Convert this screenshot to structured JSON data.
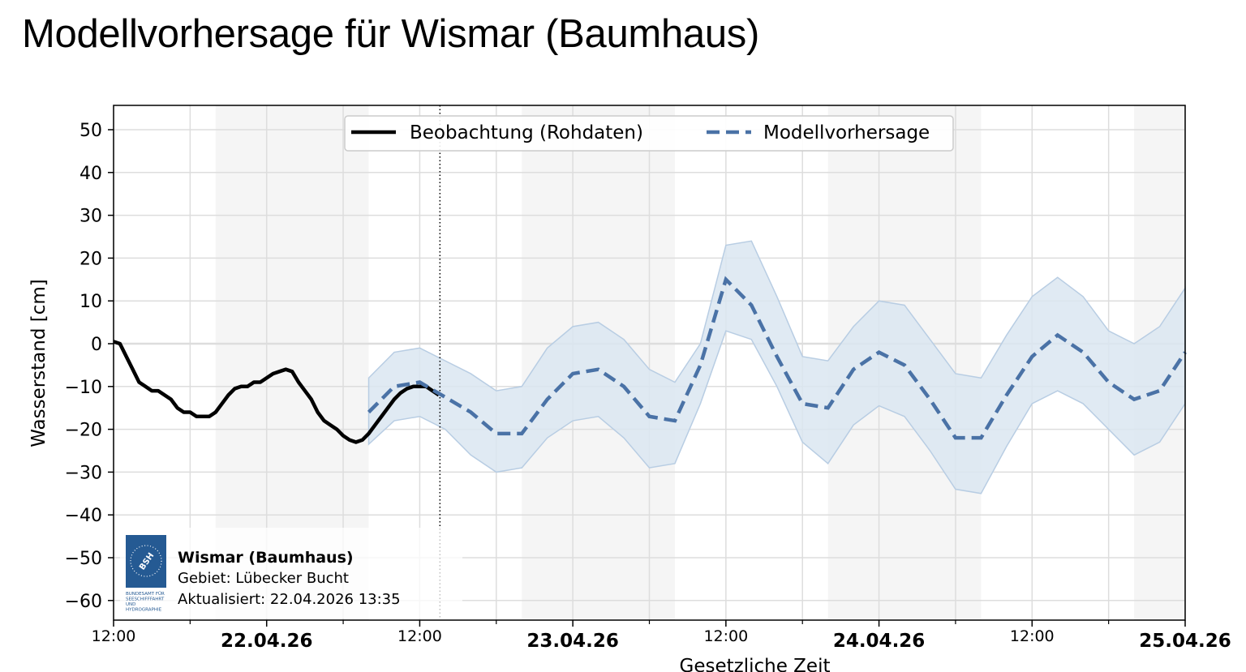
{
  "page": {
    "title": "Modellvorhersage für Wismar (Baumhaus)"
  },
  "chart_data": {
    "type": "line",
    "xlabel": "Gesetzliche Zeit",
    "ylabel": "Wasserstand [cm]",
    "xlim": [
      "2026-04-21 12:00",
      "2026-04-25 00:00"
    ],
    "ylim": [
      -65,
      55
    ],
    "yticks": [
      50,
      40,
      30,
      20,
      10,
      0,
      -10,
      -20,
      -30,
      -40,
      -50,
      -60
    ],
    "ytick_labels": [
      "50",
      "40",
      "30",
      "20",
      "10",
      "0",
      "−10",
      "−20",
      "−30",
      "−40",
      "−50",
      "−60"
    ],
    "xticks_major": [
      {
        "time": "2026-04-21 12:00",
        "label": "12:00",
        "bold": false
      },
      {
        "time": "2026-04-22 00:00",
        "label": "22.04.26",
        "bold": true
      },
      {
        "time": "2026-04-22 12:00",
        "label": "12:00",
        "bold": false
      },
      {
        "time": "2026-04-23 00:00",
        "label": "23.04.26",
        "bold": true
      },
      {
        "time": "2026-04-23 12:00",
        "label": "12:00",
        "bold": false
      },
      {
        "time": "2026-04-24 00:00",
        "label": "24.04.26",
        "bold": true
      },
      {
        "time": "2026-04-24 12:00",
        "label": "12:00",
        "bold": false
      },
      {
        "time": "2026-04-25 00:00",
        "label": "25.04.26",
        "bold": true
      }
    ],
    "xticks_minor": [
      "2026-04-21 18:00",
      "2026-04-22 06:00",
      "2026-04-22 18:00",
      "2026-04-23 06:00",
      "2026-04-23 18:00",
      "2026-04-24 06:00",
      "2026-04-24 18:00"
    ],
    "grid": true,
    "night_bands": [
      [
        "2026-04-21 20:00",
        "2026-04-22 08:00"
      ],
      [
        "2026-04-22 20:00",
        "2026-04-23 08:00"
      ],
      [
        "2026-04-23 20:00",
        "2026-04-24 08:00"
      ],
      [
        "2026-04-24 20:00",
        "2026-04-25 00:00"
      ]
    ],
    "now_marker": "2026-04-22 13:35",
    "legend": {
      "placement": "top-center",
      "entries": [
        "Beobachtung (Rohdaten)",
        "Modellvorhersage"
      ]
    },
    "colors": {
      "observation": "#000000",
      "forecast": "#4a72a6",
      "band": "#dbe6f1",
      "band_edge": "#b8cde3",
      "night": "#f5f5f5",
      "grid": "#dddddd"
    },
    "series": [
      {
        "name": "Beobachtung (Rohdaten)",
        "style": "solid",
        "x": [
          "2026-04-21 12:00",
          "2026-04-21 12:30",
          "2026-04-21 13:00",
          "2026-04-21 13:30",
          "2026-04-21 14:00",
          "2026-04-21 14:30",
          "2026-04-21 15:00",
          "2026-04-21 15:30",
          "2026-04-21 16:00",
          "2026-04-21 16:30",
          "2026-04-21 17:00",
          "2026-04-21 17:30",
          "2026-04-21 18:00",
          "2026-04-21 18:30",
          "2026-04-21 19:00",
          "2026-04-21 19:30",
          "2026-04-21 20:00",
          "2026-04-21 20:30",
          "2026-04-21 21:00",
          "2026-04-21 21:30",
          "2026-04-21 22:00",
          "2026-04-21 22:30",
          "2026-04-21 23:00",
          "2026-04-21 23:30",
          "2026-04-22 00:00",
          "2026-04-22 00:30",
          "2026-04-22 01:00",
          "2026-04-22 01:30",
          "2026-04-22 02:00",
          "2026-04-22 02:30",
          "2026-04-22 03:00",
          "2026-04-22 03:30",
          "2026-04-22 04:00",
          "2026-04-22 04:30",
          "2026-04-22 05:00",
          "2026-04-22 05:30",
          "2026-04-22 06:00",
          "2026-04-22 06:30",
          "2026-04-22 07:00",
          "2026-04-22 07:30",
          "2026-04-22 08:00",
          "2026-04-22 08:30",
          "2026-04-22 09:00",
          "2026-04-22 09:30",
          "2026-04-22 10:00",
          "2026-04-22 10:30",
          "2026-04-22 11:00",
          "2026-04-22 11:30",
          "2026-04-22 12:00",
          "2026-04-22 12:30",
          "2026-04-22 13:00",
          "2026-04-22 13:30"
        ],
        "y": [
          0.5,
          0,
          -3,
          -6,
          -9,
          -10,
          -11,
          -11,
          -12,
          -13,
          -15,
          -16,
          -16,
          -17,
          -17,
          -17,
          -16,
          -14,
          -12,
          -10.5,
          -10,
          -10,
          -9,
          -9,
          -8,
          -7,
          -6.5,
          -6,
          -6.5,
          -9,
          -11,
          -13,
          -16,
          -18,
          -19,
          -20,
          -21.5,
          -22.5,
          -23,
          -22.5,
          -21,
          -19,
          -17,
          -15,
          -13,
          -11.5,
          -10.5,
          -10,
          -10,
          -10,
          -11,
          -12
        ]
      },
      {
        "name": "Modellvorhersage",
        "style": "dashed",
        "x": [
          "2026-04-22 08:00",
          "2026-04-22 10:00",
          "2026-04-22 12:00",
          "2026-04-22 14:00",
          "2026-04-22 16:00",
          "2026-04-22 18:00",
          "2026-04-22 20:00",
          "2026-04-22 22:00",
          "2026-04-23 00:00",
          "2026-04-23 02:00",
          "2026-04-23 04:00",
          "2026-04-23 06:00",
          "2026-04-23 08:00",
          "2026-04-23 10:00",
          "2026-04-23 12:00",
          "2026-04-23 14:00",
          "2026-04-23 16:00",
          "2026-04-23 18:00",
          "2026-04-23 20:00",
          "2026-04-23 22:00",
          "2026-04-24 00:00",
          "2026-04-24 02:00",
          "2026-04-24 04:00",
          "2026-04-24 06:00",
          "2026-04-24 08:00",
          "2026-04-24 10:00",
          "2026-04-24 12:00",
          "2026-04-24 14:00",
          "2026-04-24 16:00",
          "2026-04-24 18:00",
          "2026-04-24 20:00",
          "2026-04-24 22:00",
          "2026-04-25 00:00"
        ],
        "y": [
          -16,
          -10,
          -9,
          -12.5,
          -16,
          -21,
          -21,
          -13,
          -7,
          -6,
          -10,
          -17,
          -18,
          -5,
          15,
          9,
          -3,
          -14,
          -15,
          -6,
          -2,
          -5,
          -13,
          -22,
          -22,
          -12,
          -3,
          2,
          -2,
          -9,
          -13,
          -11,
          -2
        ],
        "upper": [
          -8,
          -2,
          -1,
          -4,
          -7,
          -11,
          -10,
          -1,
          4,
          5,
          1,
          -6,
          -9,
          0,
          23,
          24,
          11,
          -3,
          -4,
          4,
          10,
          9,
          1,
          -7,
          -8,
          2,
          11,
          15.5,
          11,
          3,
          0,
          4,
          13
        ],
        "lower": [
          -23.5,
          -18,
          -17,
          -20,
          -26,
          -30,
          -29,
          -22,
          -18,
          -17,
          -22,
          -29,
          -28,
          -14,
          3,
          1,
          -10,
          -23,
          -28,
          -19,
          -14.5,
          -17,
          -25,
          -34,
          -35,
          -24,
          -14,
          -11,
          -14,
          -20,
          -26,
          -23,
          -14
        ]
      }
    ]
  },
  "infobox": {
    "station": "Wismar (Baumhaus)",
    "area": "Gebiet: Lübecker Bucht",
    "updated": "Aktualisiert: 22.04.2026 13:35",
    "logo_text": "BSH",
    "logo_caption": [
      "BUNDESAMT FÜR",
      "SEESCHIFFFAHRT",
      "UND",
      "HYDROGRAPHIE"
    ]
  }
}
